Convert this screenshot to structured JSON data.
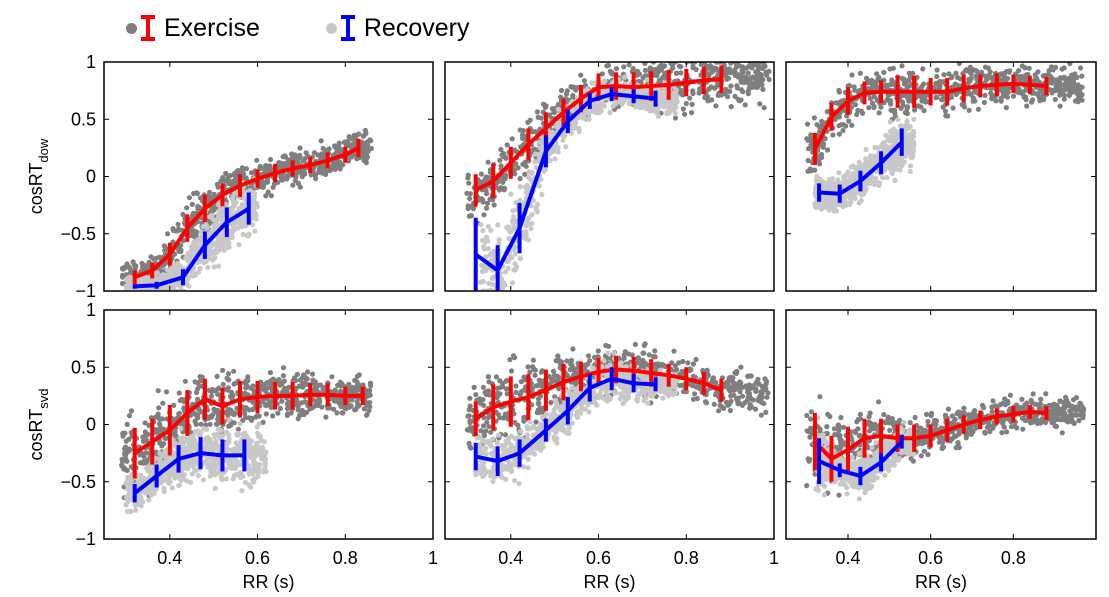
{
  "legend": {
    "exercise_label": "Exercise",
    "recovery_label": "Recovery"
  },
  "colors": {
    "exercise_line": "#ff0000",
    "recovery_line": "#0000ff",
    "exercise_points": "#7f7f7f",
    "recovery_points": "#c8c8c8"
  },
  "chart_data": [
    {
      "type": "line",
      "row": 1,
      "col": 1,
      "ylabel": "cosRT",
      "ylabel_sub": "dow",
      "xlabel": "",
      "xlim": [
        0.25,
        1.0
      ],
      "ylim": [
        -1,
        1
      ],
      "yticks": [
        "1",
        "0.5",
        "0",
        "−0.5",
        "−1"
      ],
      "xticks": [],
      "scatter_extent": {
        "exercise": [
          0.29,
          0.86
        ],
        "recovery": [
          0.3,
          0.6
        ]
      },
      "series": [
        {
          "name": "Exercise",
          "x": [
            0.32,
            0.36,
            0.4,
            0.44,
            0.48,
            0.52,
            0.56,
            0.6,
            0.64,
            0.68,
            0.72,
            0.76,
            0.8,
            0.83
          ],
          "y": [
            -0.88,
            -0.82,
            -0.68,
            -0.45,
            -0.28,
            -0.16,
            -0.08,
            -0.02,
            0.03,
            0.07,
            0.1,
            0.14,
            0.19,
            0.25
          ],
          "err": [
            0.06,
            0.07,
            0.1,
            0.12,
            0.12,
            0.1,
            0.1,
            0.08,
            0.08,
            0.07,
            0.07,
            0.07,
            0.07,
            0.08
          ]
        },
        {
          "name": "Recovery",
          "x": [
            0.32,
            0.37,
            0.43,
            0.48,
            0.53,
            0.58
          ],
          "y": [
            -0.96,
            -0.95,
            -0.88,
            -0.6,
            -0.4,
            -0.28
          ],
          "err": [
            0.02,
            0.03,
            0.07,
            0.12,
            0.13,
            0.14
          ]
        }
      ]
    },
    {
      "type": "line",
      "row": 1,
      "col": 2,
      "ylabel": "",
      "xlabel": "",
      "xlim": [
        0.25,
        1.0
      ],
      "ylim": [
        -1,
        1
      ],
      "yticks": [],
      "xticks": [],
      "scatter_extent": {
        "exercise": [
          0.3,
          0.99
        ],
        "recovery": [
          0.33,
          0.78
        ]
      },
      "series": [
        {
          "name": "Exercise",
          "x": [
            0.32,
            0.36,
            0.4,
            0.44,
            0.48,
            0.52,
            0.56,
            0.6,
            0.64,
            0.68,
            0.72,
            0.76,
            0.8,
            0.84,
            0.88
          ],
          "y": [
            -0.12,
            -0.04,
            0.12,
            0.28,
            0.42,
            0.56,
            0.68,
            0.78,
            0.79,
            0.78,
            0.79,
            0.8,
            0.82,
            0.84,
            0.85
          ],
          "err": [
            0.14,
            0.15,
            0.14,
            0.14,
            0.14,
            0.12,
            0.12,
            0.12,
            0.12,
            0.13,
            0.13,
            0.13,
            0.12,
            0.12,
            0.12
          ]
        },
        {
          "name": "Recovery",
          "x": [
            0.32,
            0.37,
            0.42,
            0.48,
            0.53,
            0.58,
            0.63,
            0.68,
            0.73
          ],
          "y": [
            -0.68,
            -0.82,
            -0.45,
            0.22,
            0.48,
            0.66,
            0.72,
            0.7,
            0.68
          ],
          "err": [
            0.32,
            0.22,
            0.22,
            0.14,
            0.1,
            0.07,
            0.06,
            0.06,
            0.07
          ]
        }
      ]
    },
    {
      "type": "line",
      "row": 1,
      "col": 3,
      "ylabel": "",
      "xlabel": "",
      "xlim": [
        0.25,
        1.0
      ],
      "ylim": [
        -1,
        1
      ],
      "yticks": [],
      "xticks": [],
      "scatter_extent": {
        "exercise": [
          0.3,
          0.97
        ],
        "recovery": [
          0.32,
          0.56
        ]
      },
      "series": [
        {
          "name": "Exercise",
          "x": [
            0.32,
            0.36,
            0.4,
            0.44,
            0.48,
            0.52,
            0.56,
            0.6,
            0.64,
            0.68,
            0.72,
            0.76,
            0.8,
            0.84,
            0.88
          ],
          "y": [
            0.24,
            0.52,
            0.66,
            0.73,
            0.74,
            0.74,
            0.74,
            0.74,
            0.74,
            0.77,
            0.79,
            0.8,
            0.81,
            0.8,
            0.79
          ],
          "err": [
            0.14,
            0.12,
            0.12,
            0.1,
            0.1,
            0.14,
            0.14,
            0.12,
            0.12,
            0.12,
            0.1,
            0.1,
            0.08,
            0.08,
            0.08
          ]
        },
        {
          "name": "Recovery",
          "x": [
            0.33,
            0.38,
            0.43,
            0.48,
            0.53
          ],
          "y": [
            -0.14,
            -0.15,
            -0.04,
            0.12,
            0.3
          ],
          "err": [
            0.08,
            0.08,
            0.09,
            0.1,
            0.12
          ]
        }
      ]
    },
    {
      "type": "line",
      "row": 2,
      "col": 1,
      "ylabel": "cosRT",
      "ylabel_sub": "svd",
      "xlabel": "RR (s)",
      "xlim": [
        0.25,
        1.0
      ],
      "ylim": [
        -1,
        1
      ],
      "yticks": [
        "1",
        "0.5",
        "0",
        "−0.5",
        "−1"
      ],
      "xticks": [
        "0.4",
        "0.6",
        "0.8",
        "1"
      ],
      "scatter_extent": {
        "exercise": [
          0.29,
          0.86
        ],
        "recovery": [
          0.3,
          0.62
        ]
      },
      "series": [
        {
          "name": "Exercise",
          "x": [
            0.32,
            0.36,
            0.4,
            0.44,
            0.48,
            0.52,
            0.56,
            0.6,
            0.64,
            0.68,
            0.72,
            0.76,
            0.8,
            0.84
          ],
          "y": [
            -0.25,
            -0.15,
            -0.05,
            0.1,
            0.22,
            0.16,
            0.22,
            0.24,
            0.25,
            0.25,
            0.26,
            0.26,
            0.25,
            0.25
          ],
          "err": [
            0.22,
            0.2,
            0.22,
            0.2,
            0.18,
            0.16,
            0.16,
            0.14,
            0.12,
            0.12,
            0.1,
            0.1,
            0.08,
            0.08
          ]
        },
        {
          "name": "Recovery",
          "x": [
            0.32,
            0.37,
            0.42,
            0.47,
            0.52,
            0.57
          ],
          "y": [
            -0.6,
            -0.45,
            -0.3,
            -0.25,
            -0.27,
            -0.27
          ],
          "err": [
            0.08,
            0.1,
            0.12,
            0.14,
            0.14,
            0.14
          ]
        }
      ]
    },
    {
      "type": "line",
      "row": 2,
      "col": 2,
      "ylabel": "",
      "xlabel": "RR (s)",
      "xlim": [
        0.25,
        1.0
      ],
      "ylim": [
        -1,
        1
      ],
      "yticks": [],
      "xticks": [
        "0.4",
        "0.6",
        "0.8",
        "1"
      ],
      "scatter_extent": {
        "exercise": [
          0.3,
          0.99
        ],
        "recovery": [
          0.32,
          0.78
        ]
      },
      "series": [
        {
          "name": "Exercise",
          "x": [
            0.32,
            0.36,
            0.4,
            0.44,
            0.48,
            0.52,
            0.56,
            0.6,
            0.64,
            0.68,
            0.72,
            0.76,
            0.8,
            0.84,
            0.88
          ],
          "y": [
            0.05,
            0.15,
            0.2,
            0.24,
            0.3,
            0.37,
            0.42,
            0.46,
            0.48,
            0.47,
            0.45,
            0.43,
            0.4,
            0.36,
            0.3
          ],
          "err": [
            0.15,
            0.2,
            0.22,
            0.2,
            0.18,
            0.16,
            0.13,
            0.12,
            0.12,
            0.12,
            0.12,
            0.1,
            0.1,
            0.1,
            0.1
          ]
        },
        {
          "name": "Recovery",
          "x": [
            0.32,
            0.37,
            0.42,
            0.48,
            0.53,
            0.58,
            0.63,
            0.68,
            0.73
          ],
          "y": [
            -0.28,
            -0.32,
            -0.25,
            -0.05,
            0.12,
            0.32,
            0.4,
            0.36,
            0.35
          ],
          "err": [
            0.12,
            0.13,
            0.12,
            0.1,
            0.12,
            0.12,
            0.1,
            0.08,
            0.06
          ]
        }
      ]
    },
    {
      "type": "line",
      "row": 2,
      "col": 3,
      "ylabel": "",
      "xlabel": "RR (s)",
      "xlim": [
        0.25,
        1.0
      ],
      "ylim": [
        -1,
        1
      ],
      "yticks": [],
      "xticks": [
        "0.4",
        "0.6",
        "0.8"
      ],
      "scatter_extent": {
        "exercise": [
          0.3,
          0.97
        ],
        "recovery": [
          0.32,
          0.56
        ]
      },
      "series": [
        {
          "name": "Exercise",
          "x": [
            0.32,
            0.36,
            0.4,
            0.44,
            0.48,
            0.52,
            0.56,
            0.6,
            0.64,
            0.68,
            0.72,
            0.76,
            0.8,
            0.84,
            0.88
          ],
          "y": [
            -0.15,
            -0.3,
            -0.22,
            -0.12,
            -0.1,
            -0.12,
            -0.12,
            -0.1,
            -0.05,
            0.0,
            0.04,
            0.07,
            0.09,
            0.11,
            0.1
          ],
          "err": [
            0.25,
            0.2,
            0.2,
            0.17,
            0.15,
            0.12,
            0.12,
            0.1,
            0.1,
            0.08,
            0.08,
            0.07,
            0.07,
            0.06,
            0.06
          ]
        },
        {
          "name": "Recovery",
          "x": [
            0.33,
            0.38,
            0.43,
            0.48,
            0.53
          ],
          "y": [
            -0.32,
            -0.4,
            -0.45,
            -0.33,
            -0.15
          ],
          "err": [
            0.2,
            0.06,
            0.08,
            0.08,
            0.06
          ]
        }
      ]
    }
  ]
}
